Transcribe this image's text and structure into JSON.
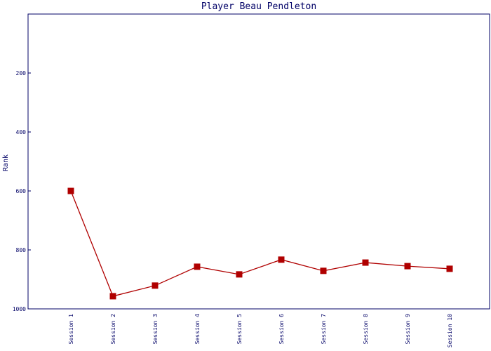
{
  "chart_data": {
    "type": "line",
    "title": "Player Beau Pendleton",
    "y_label": "Rank",
    "categories": [
      "Session 1",
      "Session 2",
      "Session 3",
      "Session 4",
      "Session 5",
      "Session 6",
      "Session 7",
      "Session 8",
      "Session 9",
      "Session 10"
    ],
    "series": [
      {
        "color": "#b00000",
        "values": [
          600,
          957,
          921,
          857,
          883,
          833,
          871,
          843,
          855,
          864
        ]
      }
    ],
    "ylim": [
      0,
      1000
    ],
    "y_inverted": true,
    "yticks": [
      200,
      400,
      600,
      800,
      1000
    ],
    "grid": false
  }
}
